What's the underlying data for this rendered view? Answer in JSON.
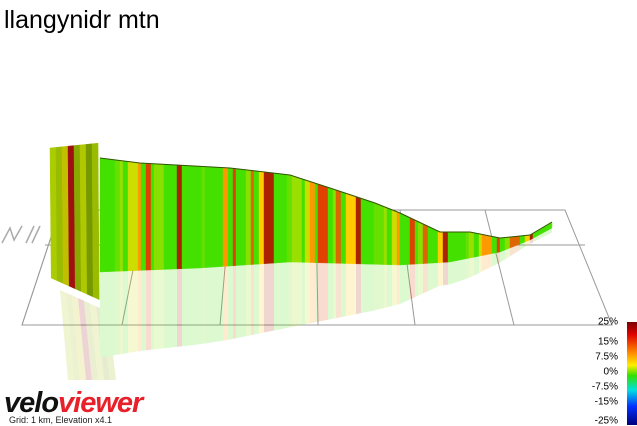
{
  "header": {
    "title": "llangynidr mtn"
  },
  "legend": {
    "labels": [
      "25%",
      "15%",
      "7.5%",
      "0%",
      "-7.5%",
      "-15%",
      "-25%"
    ]
  },
  "logo": {
    "velo": "velo",
    "viewer": "viewer"
  },
  "caption": "Grid: 1 km, Elevation x4.1"
}
